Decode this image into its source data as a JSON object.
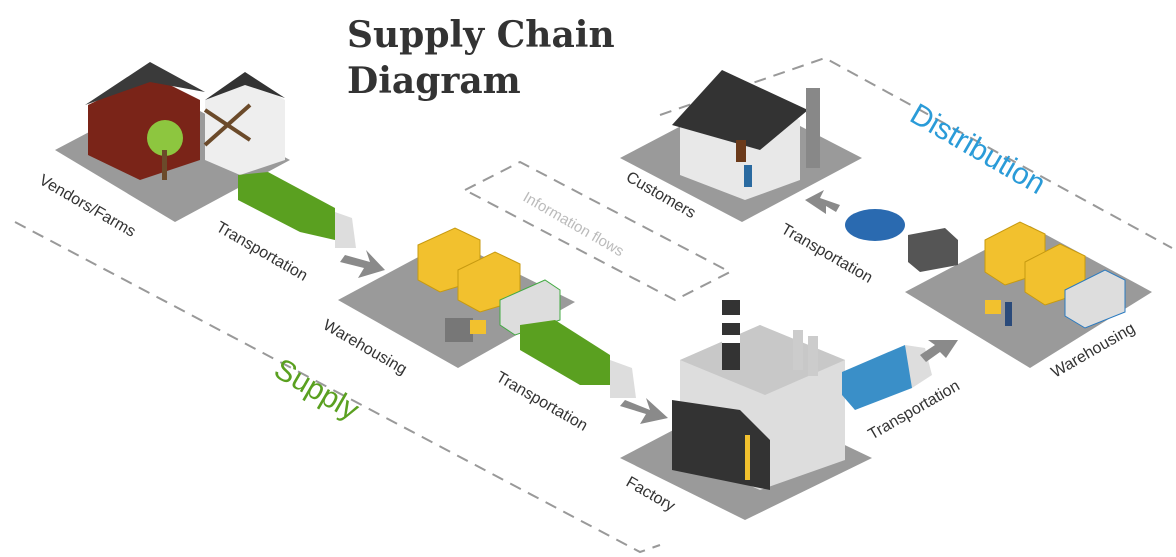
{
  "title": "Supply Chain Diagram",
  "regions": {
    "supply": "Supply",
    "distribution": "Distribution",
    "information": "Information flows"
  },
  "nodes": [
    {
      "label": "Vendors/Farms"
    },
    {
      "label": "Warehousing"
    },
    {
      "label": "Factory"
    },
    {
      "label": "Warehousing"
    },
    {
      "label": "Customers"
    }
  ],
  "links": [
    {
      "label": "Transportation"
    },
    {
      "label": "Transportation"
    },
    {
      "label": "Transportation"
    },
    {
      "label": "Transportation"
    }
  ]
}
